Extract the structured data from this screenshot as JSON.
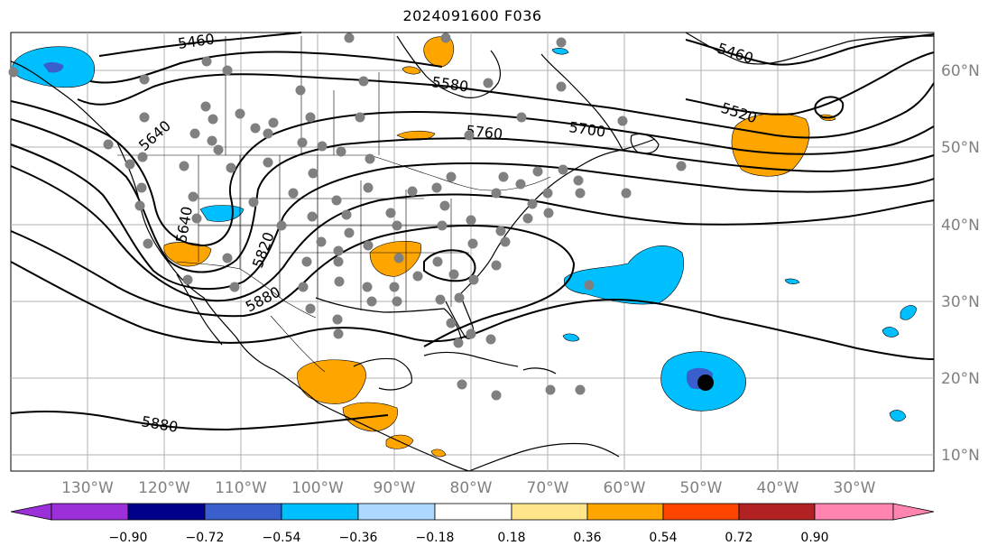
{
  "title": "2024091600 F036",
  "longitude_labels": [
    "130°W",
    "120°W",
    "110°W",
    "100°W",
    "90°W",
    "80°W",
    "70°W",
    "60°W",
    "50°W",
    "40°W",
    "30°W"
  ],
  "latitude_labels": [
    "60°N",
    "50°N",
    "40°N",
    "30°N",
    "20°N",
    "10°N"
  ],
  "contour_labels": [
    "5460",
    "5460",
    "5580",
    "5520",
    "5640",
    "5760",
    "5700",
    "5640",
    "5820",
    "5880",
    "5880"
  ],
  "colorbar": {
    "tick_labels": [
      "−0.90",
      "−0.72",
      "−0.54",
      "−0.36",
      "−0.18",
      "0.18",
      "0.36",
      "0.54",
      "0.72",
      "0.90"
    ],
    "colors": [
      "#9b30d9",
      "#00008b",
      "#3a5fcd",
      "#00bfff",
      "#add8ff",
      "#ffffff",
      "#ffe68a",
      "#ffa500",
      "#ff4500",
      "#b22222",
      "#ff85b0"
    ]
  },
  "colors": {
    "ocean_positive": "#ffa500",
    "negative": "#00bfff",
    "grid": "#b0b0b0",
    "station": "#808080",
    "storm_center": "#000000"
  }
}
